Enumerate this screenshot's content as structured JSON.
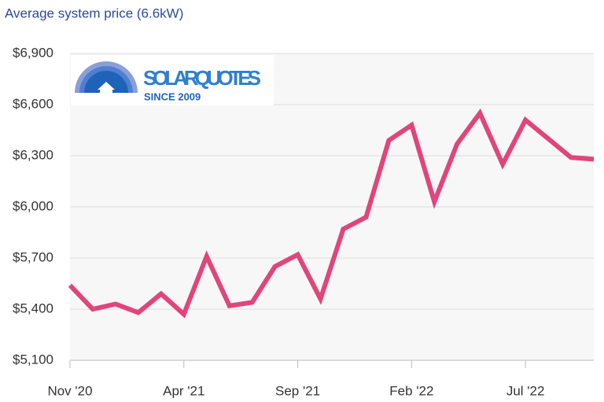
{
  "chart_data": {
    "type": "line",
    "title": "Average system price (6.6kW)",
    "categories": [
      "Nov '20",
      null,
      null,
      null,
      null,
      "Apr '21",
      null,
      null,
      null,
      null,
      "Sep '21",
      null,
      null,
      null,
      null,
      "Feb '22",
      null,
      null,
      null,
      null,
      "Jul '22",
      null,
      null,
      null
    ],
    "series": [
      {
        "name": "Average system price",
        "color": "#e0457b",
        "values": [
          5540,
          5400,
          5430,
          5380,
          5490,
          5370,
          5710,
          5420,
          5440,
          5650,
          5720,
          5460,
          5870,
          5940,
          6390,
          6480,
          6030,
          6370,
          6550,
          6250,
          6510,
          6400,
          6290,
          6280
        ]
      }
    ],
    "ylim": [
      5100,
      6900
    ],
    "yticks": [
      {
        "value": 5100,
        "label": "$5,100"
      },
      {
        "value": 5400,
        "label": "$5,400"
      },
      {
        "value": 5700,
        "label": "$5,700"
      },
      {
        "value": 6000,
        "label": "$6,000"
      },
      {
        "value": 6300,
        "label": "$6,300"
      },
      {
        "value": 6600,
        "label": "$6,600"
      },
      {
        "value": 6900,
        "label": "$6,900"
      }
    ],
    "grid": true
  },
  "logo": {
    "name": "SOLARQUOTES",
    "tagline": "SINCE 2009"
  }
}
